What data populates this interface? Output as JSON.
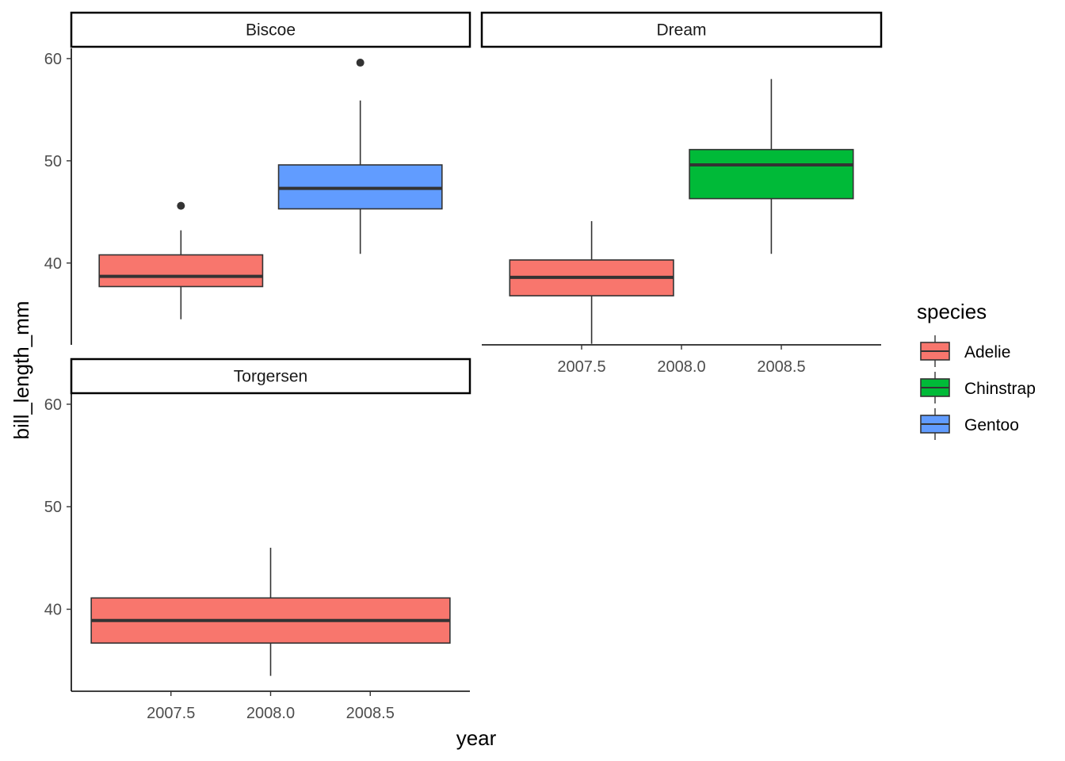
{
  "chart_data": {
    "type": "boxplot",
    "xlabel": "year",
    "ylabel": "bill_length_mm",
    "legend": {
      "title": "species",
      "position": "right",
      "entries": [
        {
          "name": "Adelie",
          "color": "#F8766D"
        },
        {
          "name": "Chinstrap",
          "color": "#00BA38"
        },
        {
          "name": "Gentoo",
          "color": "#619CFF"
        }
      ]
    },
    "grid": false,
    "xlim": [
      2007.0,
      2009.0
    ],
    "ylim": [
      32.0,
      61.0
    ],
    "x_ticks": [
      2007.5,
      2008.0,
      2008.5
    ],
    "x_tick_labels": [
      "2007.5",
      "2008.0",
      "2008.5"
    ],
    "y_ticks": [
      40,
      50,
      60
    ],
    "y_tick_labels": [
      "40",
      "50",
      "60"
    ],
    "panels": [
      {
        "name": "Biscoe",
        "boxes": [
          {
            "species": "Adelie",
            "x_min": 2007.14,
            "x_max": 2007.96,
            "whisker_low": 34.5,
            "q1": 37.7,
            "median": 38.7,
            "q3": 40.8,
            "whisker_high": 43.2,
            "outliers": [
              45.6
            ]
          },
          {
            "species": "Gentoo",
            "x_min": 2008.04,
            "x_max": 2008.86,
            "whisker_low": 40.9,
            "q1": 45.3,
            "median": 47.3,
            "q3": 49.6,
            "whisker_high": 55.9,
            "outliers": [
              59.6
            ]
          }
        ]
      },
      {
        "name": "Dream",
        "boxes": [
          {
            "species": "Adelie",
            "x_min": 2007.14,
            "x_max": 2007.96,
            "whisker_low": 32.1,
            "q1": 36.8,
            "median": 38.6,
            "q3": 40.3,
            "whisker_high": 44.1,
            "outliers": []
          },
          {
            "species": "Chinstrap",
            "x_min": 2008.04,
            "x_max": 2008.86,
            "whisker_low": 40.9,
            "q1": 46.3,
            "median": 49.6,
            "q3": 51.1,
            "whisker_high": 58.0,
            "outliers": []
          }
        ]
      },
      {
        "name": "Torgersen",
        "boxes": [
          {
            "species": "Adelie",
            "x_min": 2007.1,
            "x_max": 2008.9,
            "whisker_low": 33.5,
            "q1": 36.7,
            "median": 38.9,
            "q3": 41.1,
            "whisker_high": 46.0,
            "outliers": []
          }
        ]
      }
    ]
  }
}
